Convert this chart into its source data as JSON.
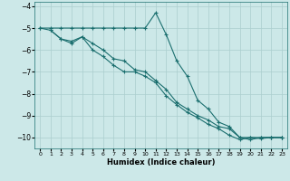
{
  "xlabel": "Humidex (Indice chaleur)",
  "ylabel": "",
  "xlim": [
    -0.5,
    23.5
  ],
  "ylim": [
    -10.5,
    -3.8
  ],
  "yticks": [
    -10,
    -9,
    -8,
    -7,
    -6,
    -5,
    -4
  ],
  "xticks": [
    0,
    1,
    2,
    3,
    4,
    5,
    6,
    7,
    8,
    9,
    10,
    11,
    12,
    13,
    14,
    15,
    16,
    17,
    18,
    19,
    20,
    21,
    22,
    23
  ],
  "bg_color": "#cce8e8",
  "line_color": "#1a6e6e",
  "grid_color": "#aacece",
  "line1_x": [
    0,
    1,
    2,
    3,
    4,
    5,
    6,
    7,
    8,
    9,
    10,
    11,
    12,
    13,
    14,
    15,
    16,
    17,
    18,
    19,
    20,
    21,
    22,
    23
  ],
  "line1_y": [
    -5.0,
    -5.0,
    -5.0,
    -5.0,
    -5.0,
    -5.0,
    -5.0,
    -5.0,
    -5.0,
    -5.0,
    -5.0,
    -4.3,
    -5.3,
    -6.5,
    -7.2,
    -8.3,
    -8.7,
    -9.3,
    -9.5,
    -10.0,
    -10.0,
    -10.0,
    -10.0,
    -10.0
  ],
  "line2_x": [
    0,
    1,
    2,
    3,
    4,
    5,
    6,
    7,
    8,
    9,
    10,
    11,
    12,
    13,
    14,
    15,
    16,
    17,
    18,
    19,
    20,
    21,
    22,
    23
  ],
  "line2_y": [
    -5.0,
    -5.1,
    -5.5,
    -5.6,
    -5.4,
    -5.7,
    -6.0,
    -6.4,
    -6.5,
    -6.9,
    -7.0,
    -7.4,
    -7.8,
    -8.4,
    -8.7,
    -9.0,
    -9.2,
    -9.5,
    -9.6,
    -10.0,
    -10.1,
    -10.0,
    -10.0,
    -10.0
  ],
  "line3_x": [
    1,
    2,
    3,
    4,
    5,
    6,
    7,
    8,
    9,
    10,
    11,
    12,
    13,
    14,
    15,
    16,
    17,
    18,
    19,
    20,
    21,
    22,
    23
  ],
  "line3_y": [
    -5.1,
    -5.5,
    -5.7,
    -5.4,
    -6.0,
    -6.3,
    -6.7,
    -7.0,
    -7.0,
    -7.2,
    -7.5,
    -8.1,
    -8.5,
    -8.85,
    -9.1,
    -9.4,
    -9.6,
    -9.9,
    -10.1,
    -10.0,
    -10.05,
    -10.0,
    -10.0
  ]
}
